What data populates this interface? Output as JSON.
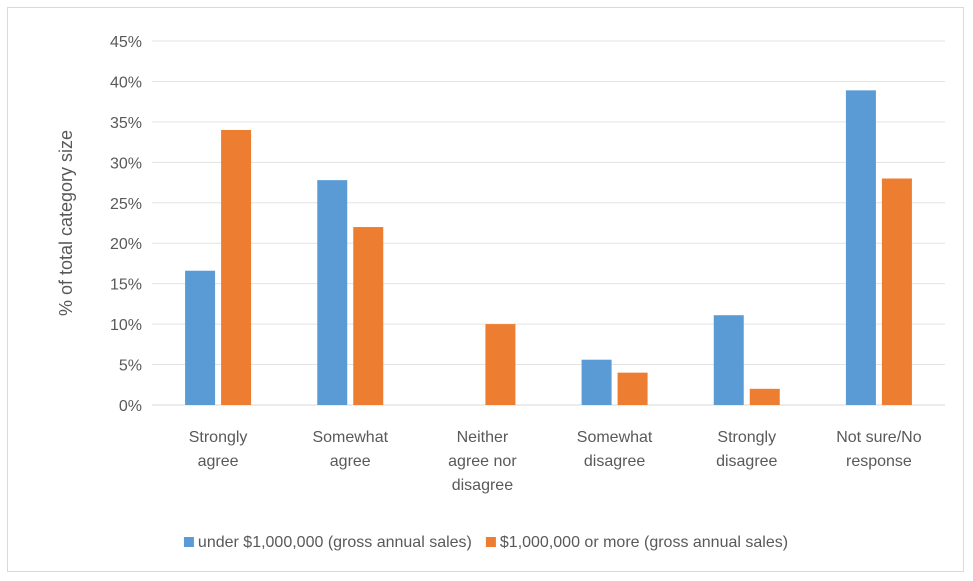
{
  "chart_data": {
    "type": "bar",
    "title": "",
    "xlabel": "",
    "ylabel": "% of total category size",
    "ylim": [
      0,
      45
    ],
    "ytick_step": 5,
    "ytick_suffix": "%",
    "grid": true,
    "legend_position": "bottom",
    "categories": [
      [
        "Strongly",
        "agree"
      ],
      [
        "Somewhat",
        "agree"
      ],
      [
        "Neither",
        "agree nor",
        "disagree"
      ],
      [
        "Somewhat",
        "disagree"
      ],
      [
        "Strongly",
        "disagree"
      ],
      [
        "Not sure/No",
        "response"
      ]
    ],
    "series": [
      {
        "name": "under $1,000,000 (gross annual sales)",
        "color": "#5b9bd5",
        "values": [
          16.6,
          27.8,
          0,
          5.6,
          11.1,
          38.9
        ]
      },
      {
        "name": "$1,000,000 or more (gross annual sales)",
        "color": "#ed7d31",
        "values": [
          34,
          22,
          10,
          4,
          2,
          28
        ]
      }
    ]
  }
}
